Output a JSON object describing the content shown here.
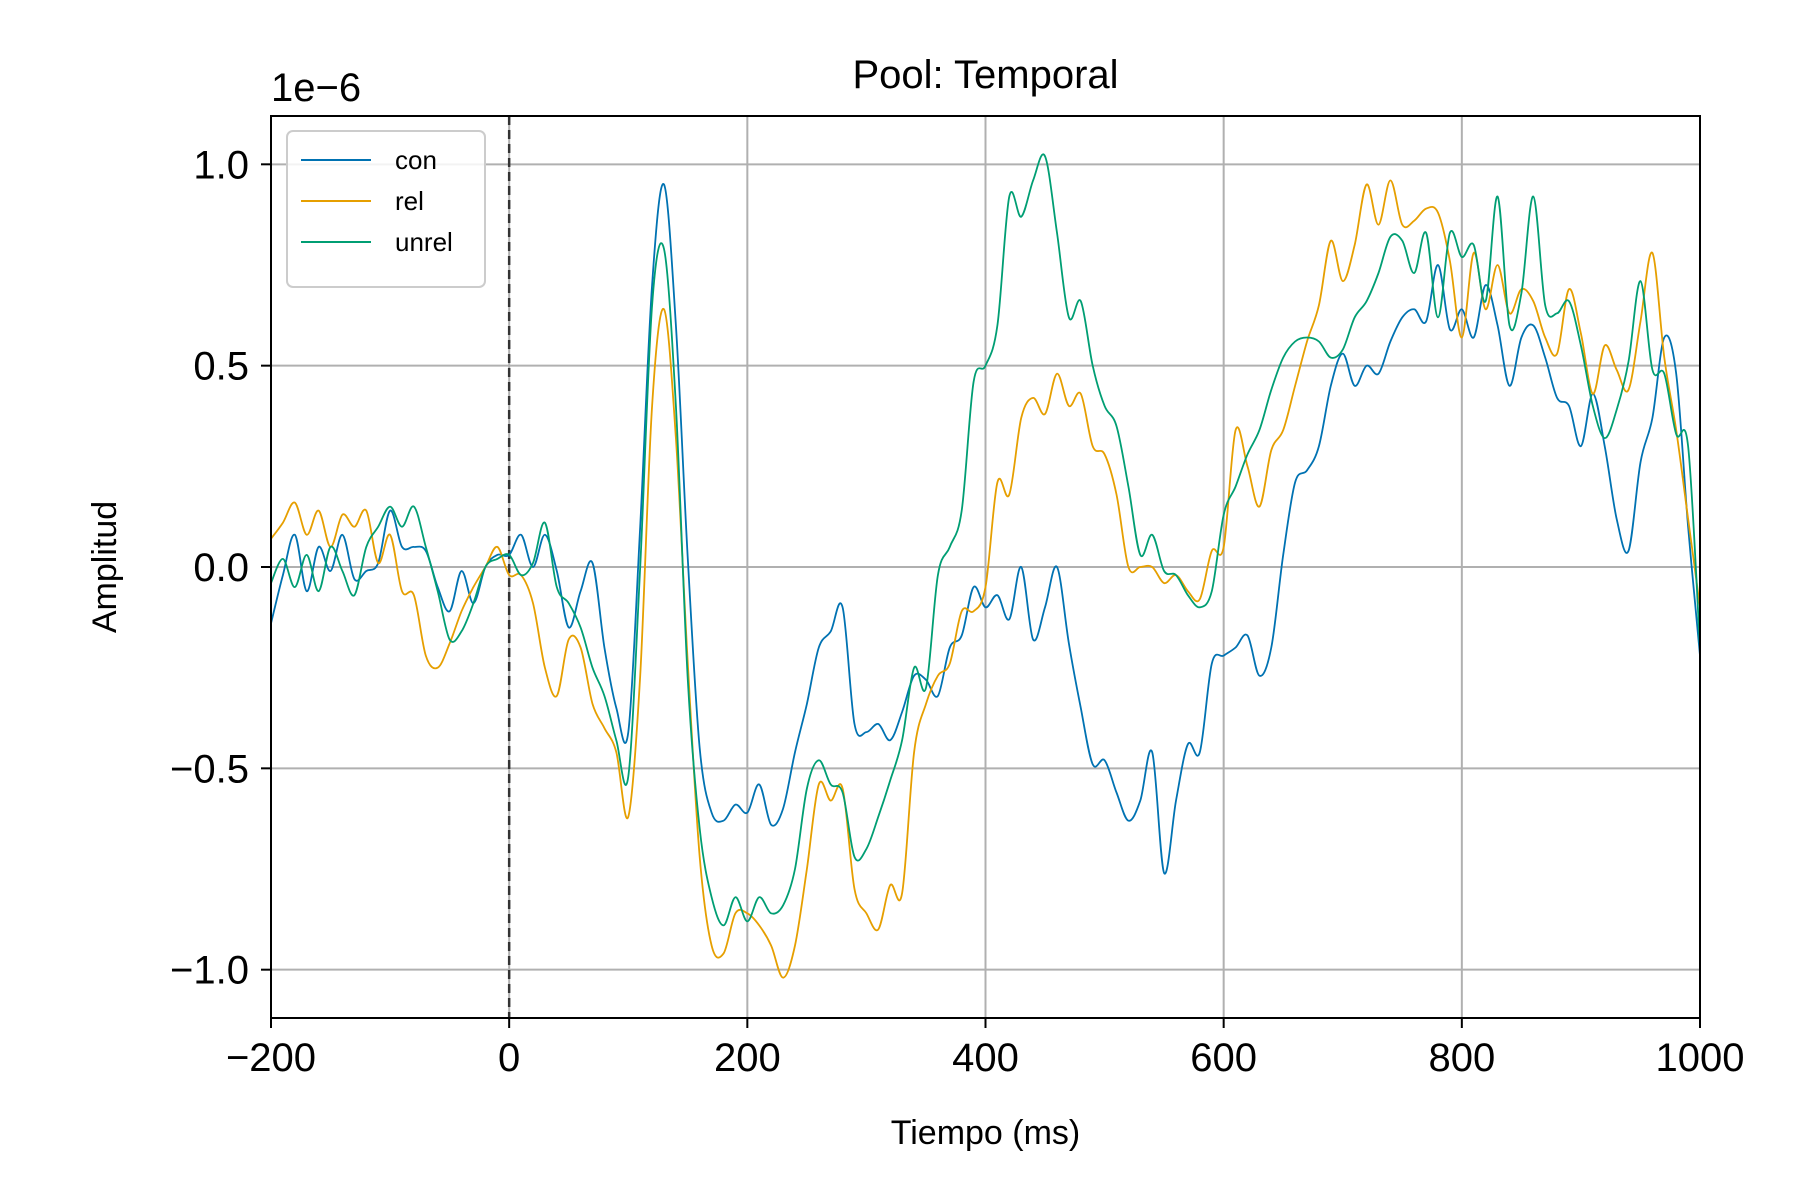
{
  "chart_data": {
    "type": "line",
    "title": "Pool: Temporal",
    "xlabel": "Tiempo (ms)",
    "ylabel": "Amplitud",
    "y_offset_label": "1e−6",
    "xlim": [
      -200,
      1000
    ],
    "ylim": [
      -1.12e-06,
      1.12e-06
    ],
    "x_ticks": [
      -200,
      0,
      200,
      400,
      600,
      800,
      1000
    ],
    "x_tick_labels": [
      "−200",
      "0",
      "200",
      "400",
      "600",
      "800",
      "1000"
    ],
    "y_ticks": [
      -1e-06,
      -5e-07,
      0.0,
      5e-07,
      1e-06
    ],
    "y_tick_labels": [
      "−1.0",
      "−0.5",
      "0.0",
      "0.5",
      "1.0"
    ],
    "grid": true,
    "legend_position": "top-left",
    "vline": {
      "x": 0,
      "style": "dashed",
      "color": "#333333"
    },
    "x": [
      -200,
      -190,
      -180,
      -170,
      -160,
      -150,
      -140,
      -130,
      -120,
      -110,
      -100,
      -90,
      -80,
      -70,
      -60,
      -50,
      -40,
      -30,
      -20,
      -10,
      0,
      10,
      20,
      30,
      40,
      50,
      60,
      70,
      80,
      90,
      100,
      110,
      120,
      130,
      140,
      150,
      160,
      170,
      180,
      190,
      200,
      210,
      220,
      230,
      240,
      250,
      260,
      270,
      280,
      290,
      300,
      310,
      320,
      330,
      340,
      350,
      360,
      370,
      380,
      390,
      400,
      410,
      420,
      430,
      440,
      450,
      460,
      470,
      480,
      490,
      500,
      510,
      520,
      530,
      540,
      550,
      560,
      570,
      580,
      590,
      600,
      610,
      620,
      630,
      640,
      650,
      660,
      670,
      680,
      690,
      700,
      710,
      720,
      730,
      740,
      750,
      760,
      770,
      780,
      790,
      800,
      810,
      820,
      830,
      840,
      850,
      860,
      870,
      880,
      890,
      900,
      910,
      920,
      930,
      940,
      950,
      960,
      970,
      980,
      990,
      1000
    ],
    "series": [
      {
        "name": "con",
        "color": "#0072b2",
        "values": [
          -1.4e-07,
          -2e-08,
          8e-08,
          -6e-08,
          5e-08,
          -1e-08,
          8e-08,
          -3e-08,
          -1e-08,
          1e-08,
          1.4e-07,
          5e-08,
          5e-08,
          4e-08,
          -5e-08,
          -1.1e-07,
          -1e-08,
          -9e-08,
          0,
          3e-08,
          3e-08,
          8e-08,
          0,
          8e-08,
          -1e-08,
          -1.5e-07,
          -6e-08,
          1e-08,
          -2e-07,
          -3.5e-07,
          -4.1e-07,
          1e-07,
          7e-07,
          9.5e-07,
          6e-07,
          2e-08,
          -4.5e-07,
          -6.1e-07,
          -6.3e-07,
          -5.9e-07,
          -6.1e-07,
          -5.4e-07,
          -6.4e-07,
          -6e-07,
          -4.6e-07,
          -3.4e-07,
          -2e-07,
          -1.6e-07,
          -1e-07,
          -3.9e-07,
          -4.1e-07,
          -3.9e-07,
          -4.3e-07,
          -3.6e-07,
          -2.7e-07,
          -2.8e-07,
          -3.2e-07,
          -2e-07,
          -1.7e-07,
          -5e-08,
          -1e-07,
          -7e-08,
          -1.3e-07,
          0,
          -1.8e-07,
          -1e-07,
          0,
          -1.9e-07,
          -3.5e-07,
          -4.9e-07,
          -4.8e-07,
          -5.6e-07,
          -6.3e-07,
          -5.8e-07,
          -4.6e-07,
          -7.6e-07,
          -5.8e-07,
          -4.4e-07,
          -4.6e-07,
          -2.4e-07,
          -2.2e-07,
          -2e-07,
          -1.7e-07,
          -2.7e-07,
          -2e-07,
          3e-08,
          2.1e-07,
          2.4e-07,
          3e-07,
          4.5e-07,
          5.3e-07,
          4.5e-07,
          5e-07,
          4.8e-07,
          5.6e-07,
          6.2e-07,
          6.4e-07,
          6.1e-07,
          7.5e-07,
          5.9e-07,
          6.4e-07,
          5.7e-07,
          7e-07,
          6e-07,
          4.5e-07,
          5.7e-07,
          6e-07,
          5.2e-07,
          4.2e-07,
          4e-07,
          3e-07,
          4.3e-07,
          3e-07,
          1.2e-07,
          4e-08,
          2.6e-07,
          3.7e-07,
          5.7e-07,
          4.8e-07,
          1e-07,
          -2.2e-07
        ]
      },
      {
        "name": "rel",
        "color": "#e69f00",
        "values": [
          7e-08,
          1.1e-07,
          1.6e-07,
          8e-08,
          1.4e-07,
          5e-08,
          1.3e-07,
          1e-07,
          1.4e-07,
          1e-08,
          8e-08,
          -6e-08,
          -7e-08,
          -2.2e-07,
          -2.5e-07,
          -1.9e-07,
          -1.1e-07,
          -5e-08,
          0,
          5e-08,
          -2e-08,
          -2e-08,
          -9e-08,
          -2.5e-07,
          -3.2e-07,
          -1.8e-07,
          -2e-07,
          -3.4e-07,
          -4e-07,
          -4.6e-07,
          -6.2e-07,
          -2.7e-07,
          4e-07,
          6.4e-07,
          3.2e-07,
          -2.4e-07,
          -7.2e-07,
          -9.4e-07,
          -9.6e-07,
          -8.6e-07,
          -8.6e-07,
          -8.9e-07,
          -9.4e-07,
          -1.02e-06,
          -9.4e-07,
          -7.5e-07,
          -5.4e-07,
          -5.8e-07,
          -5.5e-07,
          -8e-07,
          -8.6e-07,
          -9e-07,
          -7.9e-07,
          -8.1e-07,
          -4.6e-07,
          -3.4e-07,
          -2.7e-07,
          -2.4e-07,
          -1.1e-07,
          -1.1e-07,
          -5e-08,
          2.1e-07,
          1.8e-07,
          3.7e-07,
          4.2e-07,
          3.8e-07,
          4.8e-07,
          4e-07,
          4.3e-07,
          3e-07,
          2.8e-07,
          1.8e-07,
          0,
          0,
          0,
          -4e-08,
          -2e-08,
          -6e-08,
          -8e-08,
          4e-08,
          5e-08,
          3.4e-07,
          2.5e-07,
          1.5e-07,
          2.9e-07,
          3.4e-07,
          4.5e-07,
          5.6e-07,
          6.5e-07,
          8.1e-07,
          7.1e-07,
          8e-07,
          9.5e-07,
          8.5e-07,
          9.6e-07,
          8.5e-07,
          8.6e-07,
          8.9e-07,
          8.8e-07,
          7.6e-07,
          5.7e-07,
          7.8e-07,
          6.4e-07,
          7.5e-07,
          6.3e-07,
          6.9e-07,
          6.6e-07,
          5.7e-07,
          5.3e-07,
          6.9e-07,
          5.8e-07,
          4.3e-07,
          5.5e-07,
          4.9e-07,
          4.4e-07,
          6.1e-07,
          7.8e-07,
          5.2e-07,
          3.4e-07,
          1.2e-07,
          -1e-07
        ]
      },
      {
        "name": "unrel",
        "color": "#009e73",
        "values": [
          -4e-08,
          2e-08,
          -5e-08,
          3e-08,
          -6e-08,
          5e-08,
          -1e-08,
          -7e-08,
          5e-08,
          1e-07,
          1.5e-07,
          1e-07,
          1.5e-07,
          5e-08,
          -6e-08,
          -1.8e-07,
          -1.6e-07,
          -9e-08,
          0,
          2e-08,
          3e-08,
          -2e-08,
          1e-08,
          1.1e-07,
          -5e-08,
          -9e-08,
          -1.5e-07,
          -2.5e-07,
          -3.2e-07,
          -4.3e-07,
          -5.2e-07,
          0,
          6.5e-07,
          7.9e-07,
          4e-07,
          -2.8e-07,
          -6.5e-07,
          -8.2e-07,
          -8.9e-07,
          -8.2e-07,
          -8.8e-07,
          -8.2e-07,
          -8.6e-07,
          -8.4e-07,
          -7.5e-07,
          -5.5e-07,
          -4.8e-07,
          -5.4e-07,
          -5.6e-07,
          -7.2e-07,
          -7e-07,
          -6.2e-07,
          -5.3e-07,
          -4.3e-07,
          -2.5e-07,
          -3e-07,
          -2e-08,
          5e-08,
          1.4e-07,
          4.6e-07,
          5e-07,
          6e-07,
          9.2e-07,
          8.7e-07,
          9.6e-07,
          1.02e-06,
          8.3e-07,
          6.2e-07,
          6.6e-07,
          5e-07,
          4e-07,
          3.5e-07,
          2e-07,
          3e-08,
          8e-08,
          -1e-08,
          -2e-08,
          -7e-08,
          -1e-07,
          -6e-08,
          1.3e-07,
          2e-07,
          2.8e-07,
          3.4e-07,
          4.4e-07,
          5.2e-07,
          5.6e-07,
          5.7e-07,
          5.6e-07,
          5.2e-07,
          5.4e-07,
          6.2e-07,
          6.6e-07,
          7.3e-07,
          8.2e-07,
          8.1e-07,
          7.3e-07,
          8.3e-07,
          6.2e-07,
          8.3e-07,
          7.7e-07,
          8e-07,
          6.6e-07,
          9.2e-07,
          6e-07,
          6.8e-07,
          9.2e-07,
          6.5e-07,
          6.3e-07,
          6.6e-07,
          5.5e-07,
          4e-07,
          3.2e-07,
          3.9e-07,
          5.1e-07,
          7.1e-07,
          4.9e-07,
          4.8e-07,
          3.3e-07,
          3e-07,
          -2e-07
        ]
      }
    ]
  }
}
